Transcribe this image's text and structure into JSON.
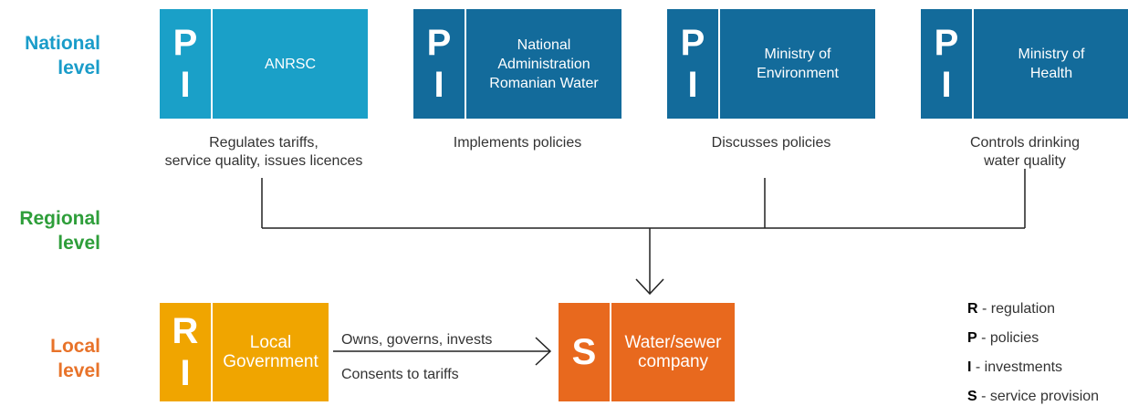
{
  "levels": [
    {
      "lines": [
        "National",
        "level"
      ],
      "color": "#1a9cc9"
    },
    {
      "lines": [
        "Regional",
        "level"
      ],
      "color": "#2e9e3a"
    },
    {
      "lines": [
        "Local",
        "level"
      ],
      "color": "#e8732a"
    }
  ],
  "top_boxes": [
    {
      "letters": [
        "P",
        "I"
      ],
      "lines": [
        "ANRSC"
      ],
      "color": "#1aa0c8",
      "description": [
        "Regulates tariffs,",
        "service quality, issues licences"
      ]
    },
    {
      "letters": [
        "P",
        "I"
      ],
      "lines": [
        "National",
        "Administration",
        "Romanian Water"
      ],
      "color": "#136b9b",
      "description": [
        "Implements policies"
      ]
    },
    {
      "letters": [
        "P",
        "I"
      ],
      "lines": [
        "Ministry of",
        "Environment"
      ],
      "color": "#136b9b",
      "description": [
        "Discusses policies"
      ]
    },
    {
      "letters": [
        "P",
        "I"
      ],
      "lines": [
        "Ministry of",
        "Health"
      ],
      "color": "#136b9b",
      "description": [
        "Controls drinking",
        "water quality"
      ]
    }
  ],
  "bottom_boxes": [
    {
      "letters": [
        "R",
        "I"
      ],
      "lines": [
        "Local",
        "Government"
      ],
      "color": "#f0a500"
    },
    {
      "letters": [
        "S"
      ],
      "lines": [
        "Water/sewer",
        "company"
      ],
      "color": "#e8691e"
    }
  ],
  "arrow_labels": [
    "Owns, governs, invests",
    "Consents to tariffs"
  ],
  "legend": [
    {
      "key": "R",
      "text": "- regulation"
    },
    {
      "key": "P",
      "text": "- policies"
    },
    {
      "key": "I",
      "text": "- investments"
    },
    {
      "key": "S",
      "text": "- service provision"
    }
  ]
}
